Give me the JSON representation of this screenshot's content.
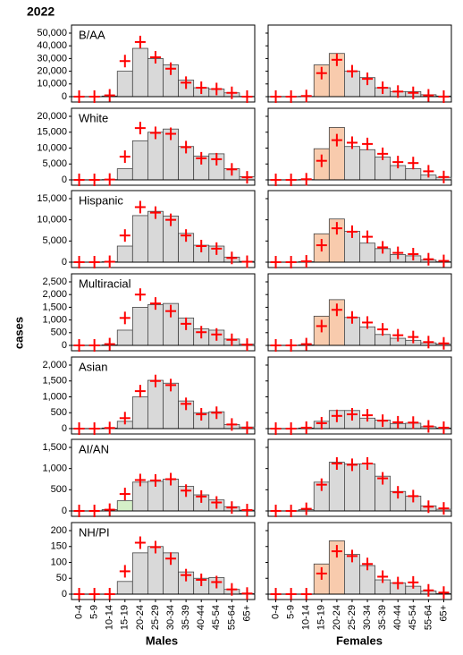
{
  "title": "2022",
  "ylabel": "cases",
  "xlabels": [
    "Males",
    "Females"
  ],
  "categories": [
    "0-4",
    "5-9",
    "10-14",
    "15-19",
    "20-24",
    "25-29",
    "30-34",
    "35-39",
    "40-44",
    "45-54",
    "55-64",
    "65+"
  ],
  "chart_data": [
    {
      "type": "bar",
      "label": "B/AA",
      "ylim": [
        0,
        50000
      ],
      "yticks": [
        0,
        {
          "value": 10000,
          "label": "10,000"
        },
        {
          "value": 20000,
          "label": "20,000"
        },
        {
          "value": 30000,
          "label": "30,000"
        },
        {
          "value": 40000,
          "label": "40,000"
        },
        {
          "value": 50000,
          "label": "50,000"
        }
      ],
      "panels": [
        {
          "values": [
            0,
            0,
            500,
            20000,
            38000,
            30000,
            25000,
            13000,
            7000,
            6000,
            3000,
            200
          ],
          "expected": [
            0,
            0,
            1000,
            28000,
            43000,
            31000,
            22000,
            11000,
            7000,
            6000,
            3000,
            0
          ],
          "colors": [
            "#d9d9d9",
            "#d9d9d9",
            "#d9d9d9",
            "#d9d9d9",
            "#d9d9d9",
            "#d9d9d9",
            "#d9d9d9",
            "#d9d9d9",
            "#d9d9d9",
            "#d9d9d9",
            "#d9d9d9",
            "#d9d9d9"
          ]
        },
        {
          "values": [
            0,
            0,
            200,
            25000,
            34000,
            20000,
            15000,
            7000,
            4000,
            4000,
            1500,
            500
          ],
          "expected": [
            0,
            0,
            500,
            18500,
            29000,
            20000,
            14000,
            7000,
            4000,
            3000,
            1000,
            0
          ],
          "colors": [
            "#d9d9d9",
            "#d9d9d9",
            "#d9d9d9",
            "#f8cbad",
            "#f8cbad",
            "#d9d9d9",
            "#d9d9d9",
            "#d9d9d9",
            "#d9d9d9",
            "#d9d9d9",
            "#d9d9d9",
            "#d9d9d9"
          ]
        }
      ]
    },
    {
      "type": "bar",
      "label": "White",
      "ylim": [
        0,
        20000
      ],
      "yticks": [
        0,
        {
          "value": 5000,
          "label": "5,000"
        },
        {
          "value": 10000,
          "label": "10,000"
        },
        {
          "value": 15000,
          "label": "15,000"
        },
        {
          "value": 20000,
          "label": "20,000"
        }
      ],
      "panels": [
        {
          "values": [
            0,
            0,
            100,
            3500,
            12300,
            15000,
            16000,
            10500,
            7500,
            8200,
            3500,
            1000
          ],
          "expected": [
            0,
            0,
            100,
            7300,
            16300,
            14800,
            14500,
            10300,
            6800,
            6500,
            3300,
            800
          ],
          "colors": [
            "#d9d9d9",
            "#d9d9d9",
            "#d9d9d9",
            "#d9d9d9",
            "#d9d9d9",
            "#d9d9d9",
            "#d9d9d9",
            "#d9d9d9",
            "#d9d9d9",
            "#d9d9d9",
            "#d9d9d9",
            "#d9d9d9"
          ]
        },
        {
          "values": [
            0,
            0,
            100,
            9800,
            16500,
            10500,
            9500,
            7200,
            4500,
            3500,
            1500,
            800
          ],
          "expected": [
            0,
            0,
            200,
            6000,
            12500,
            11700,
            11300,
            8200,
            5600,
            5300,
            2700,
            900
          ],
          "colors": [
            "#d9d9d9",
            "#d9d9d9",
            "#d9d9d9",
            "#f8cbad",
            "#f8cbad",
            "#d9d9d9",
            "#d9d9d9",
            "#d9d9d9",
            "#d9d9d9",
            "#d9d9d9",
            "#d9d9d9",
            "#d9d9d9"
          ]
        }
      ]
    },
    {
      "type": "bar",
      "label": "Hispanic",
      "ylim": [
        0,
        15000
      ],
      "yticks": [
        0,
        {
          "value": 5000,
          "label": "5,000"
        },
        {
          "value": 10000,
          "label": "10,000"
        },
        {
          "value": 15000,
          "label": "15,000"
        }
      ],
      "panels": [
        {
          "values": [
            0,
            0,
            100,
            3800,
            11000,
            12000,
            10900,
            6800,
            4000,
            3800,
            1200,
            200
          ],
          "expected": [
            0,
            0,
            100,
            6300,
            13000,
            11700,
            10000,
            6300,
            3800,
            3200,
            1000,
            100
          ],
          "colors": [
            "#d9d9d9",
            "#d9d9d9",
            "#d9d9d9",
            "#d9d9d9",
            "#d9d9d9",
            "#d9d9d9",
            "#d9d9d9",
            "#d9d9d9",
            "#d9d9d9",
            "#d9d9d9",
            "#d9d9d9",
            "#d9d9d9"
          ]
        },
        {
          "values": [
            0,
            0,
            100,
            6700,
            10200,
            7300,
            4500,
            3200,
            1800,
            1500,
            500,
            100
          ],
          "expected": [
            0,
            0,
            200,
            4000,
            8000,
            7200,
            6000,
            3500,
            2200,
            1900,
            700,
            300
          ],
          "colors": [
            "#d9d9d9",
            "#d9d9d9",
            "#d9d9d9",
            "#f8cbad",
            "#f8cbad",
            "#d9d9d9",
            "#d9d9d9",
            "#d9d9d9",
            "#d9d9d9",
            "#d9d9d9",
            "#d9d9d9",
            "#d9d9d9"
          ]
        }
      ]
    },
    {
      "type": "bar",
      "label": "Multiracial",
      "ylim": [
        0,
        2500
      ],
      "yticks": [
        0,
        500,
        {
          "value": 1000,
          "label": "1,000"
        },
        {
          "value": 1500,
          "label": "1,500"
        },
        {
          "value": 2000,
          "label": "2,000"
        },
        {
          "value": 2500,
          "label": "2,500"
        }
      ],
      "panels": [
        {
          "values": [
            0,
            0,
            20,
            600,
            1500,
            1600,
            1650,
            1080,
            650,
            600,
            250,
            50
          ],
          "expected": [
            0,
            0,
            50,
            1080,
            2000,
            1650,
            1350,
            850,
            520,
            430,
            220,
            30
          ],
          "colors": [
            "#d9d9d9",
            "#d9d9d9",
            "#d9d9d9",
            "#d9d9d9",
            "#d9d9d9",
            "#d9d9d9",
            "#d9d9d9",
            "#d9d9d9",
            "#d9d9d9",
            "#d9d9d9",
            "#d9d9d9",
            "#d9d9d9"
          ]
        },
        {
          "values": [
            0,
            0,
            20,
            1150,
            1800,
            1100,
            730,
            430,
            280,
            200,
            100,
            50
          ],
          "expected": [
            0,
            0,
            50,
            760,
            1400,
            1100,
            900,
            630,
            400,
            330,
            130,
            80
          ],
          "colors": [
            "#d9d9d9",
            "#d9d9d9",
            "#d9d9d9",
            "#f8cbad",
            "#f8cbad",
            "#d9d9d9",
            "#d9d9d9",
            "#d9d9d9",
            "#d9d9d9",
            "#d9d9d9",
            "#d9d9d9",
            "#d9d9d9"
          ]
        }
      ]
    },
    {
      "type": "bar",
      "label": "Asian",
      "ylim": [
        0,
        2000
      ],
      "yticks": [
        0,
        500,
        {
          "value": 1000,
          "label": "1,000"
        },
        {
          "value": 1500,
          "label": "1,500"
        },
        {
          "value": 2000,
          "label": "2,000"
        }
      ],
      "panels": [
        {
          "values": [
            0,
            0,
            20,
            230,
            1000,
            1520,
            1430,
            870,
            500,
            530,
            130,
            50
          ],
          "expected": [
            0,
            0,
            20,
            330,
            1180,
            1500,
            1370,
            780,
            450,
            500,
            130,
            30
          ],
          "colors": [
            "#d9d9d9",
            "#d9d9d9",
            "#d9d9d9",
            "#d9d9d9",
            "#d9d9d9",
            "#d9d9d9",
            "#d9d9d9",
            "#d9d9d9",
            "#d9d9d9",
            "#d9d9d9",
            "#d9d9d9",
            "#d9d9d9"
          ]
        },
        {
          "values": [
            0,
            0,
            20,
            230,
            570,
            570,
            330,
            270,
            160,
            170,
            60,
            20
          ],
          "expected": [
            0,
            0,
            30,
            170,
            400,
            450,
            420,
            250,
            200,
            190,
            70,
            30
          ],
          "colors": [
            "#d9d9d9",
            "#d9d9d9",
            "#d9d9d9",
            "#d9d9d9",
            "#d9d9d9",
            "#d9d9d9",
            "#d9d9d9",
            "#d9d9d9",
            "#d9d9d9",
            "#d9d9d9",
            "#d9d9d9",
            "#d9d9d9"
          ]
        }
      ]
    },
    {
      "type": "bar",
      "label": "AI/AN",
      "ylim": [
        0,
        1500
      ],
      "yticks": [
        0,
        500,
        {
          "value": 1000,
          "label": "1,000"
        },
        {
          "value": 1500,
          "label": "1,500"
        }
      ],
      "panels": [
        {
          "values": [
            0,
            0,
            30,
            240,
            680,
            700,
            750,
            580,
            380,
            260,
            100,
            20
          ],
          "expected": [
            0,
            0,
            30,
            400,
            730,
            720,
            750,
            480,
            340,
            200,
            80,
            20
          ],
          "colors": [
            "#d9d9d9",
            "#d9d9d9",
            "#d9d9d9",
            "#d5f0c8",
            "#d9d9d9",
            "#d9d9d9",
            "#d9d9d9",
            "#d9d9d9",
            "#d9d9d9",
            "#d9d9d9",
            "#d9d9d9",
            "#d9d9d9"
          ]
        },
        {
          "values": [
            0,
            0,
            30,
            680,
            1150,
            1110,
            1110,
            820,
            460,
            350,
            120,
            40
          ],
          "expected": [
            0,
            0,
            50,
            620,
            1120,
            1090,
            1120,
            770,
            440,
            350,
            100,
            60
          ],
          "colors": [
            "#d9d9d9",
            "#d9d9d9",
            "#d9d9d9",
            "#d9d9d9",
            "#d9d9d9",
            "#d9d9d9",
            "#d9d9d9",
            "#d9d9d9",
            "#d9d9d9",
            "#d9d9d9",
            "#d9d9d9",
            "#d9d9d9"
          ]
        }
      ]
    },
    {
      "type": "bar",
      "label": "NH/PI",
      "ylim": [
        0,
        200
      ],
      "yticks": [
        0,
        50,
        100,
        150,
        200
      ],
      "panels": [
        {
          "values": [
            0,
            0,
            0,
            40,
            130,
            150,
            130,
            70,
            50,
            52,
            15,
            2
          ],
          "expected": [
            0,
            0,
            0,
            72,
            162,
            148,
            112,
            60,
            45,
            38,
            15,
            2
          ],
          "colors": [
            "#d9d9d9",
            "#d9d9d9",
            "#d9d9d9",
            "#d9d9d9",
            "#d9d9d9",
            "#d9d9d9",
            "#d9d9d9",
            "#d9d9d9",
            "#d9d9d9",
            "#d9d9d9",
            "#d9d9d9",
            "#d9d9d9"
          ]
        },
        {
          "values": [
            0,
            0,
            0,
            95,
            168,
            125,
            90,
            45,
            35,
            25,
            10,
            2
          ],
          "expected": [
            0,
            0,
            0,
            65,
            135,
            120,
            95,
            55,
            35,
            37,
            12,
            5
          ],
          "colors": [
            "#d9d9d9",
            "#d9d9d9",
            "#d9d9d9",
            "#f8cbad",
            "#f8cbad",
            "#d9d9d9",
            "#d9d9d9",
            "#d9d9d9",
            "#d9d9d9",
            "#d9d9d9",
            "#d9d9d9",
            "#d9d9d9"
          ]
        }
      ]
    }
  ]
}
